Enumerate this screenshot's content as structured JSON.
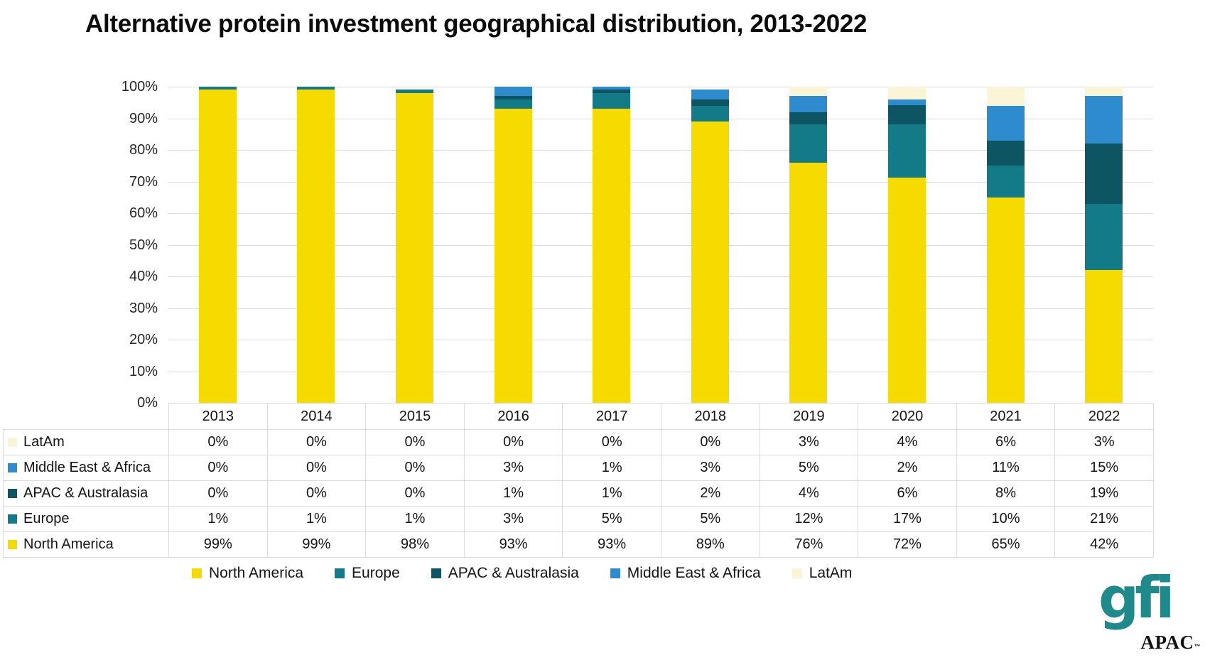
{
  "title": "Alternative protein investment geographical distribution, 2013-2022",
  "chart_data": {
    "type": "bar",
    "subtype": "stacked-100-percent",
    "categories": [
      "2013",
      "2014",
      "2015",
      "2016",
      "2017",
      "2018",
      "2019",
      "2020",
      "2021",
      "2022"
    ],
    "series": [
      {
        "name": "North America",
        "color": "#F6DB00",
        "values": [
          99,
          99,
          98,
          93,
          93,
          89,
          76,
          72,
          65,
          42
        ]
      },
      {
        "name": "Europe",
        "color": "#137A87",
        "values": [
          1,
          1,
          1,
          3,
          5,
          5,
          12,
          17,
          10,
          21
        ]
      },
      {
        "name": "APAC & Australasia",
        "color": "#0D5563",
        "values": [
          0,
          0,
          0,
          1,
          1,
          2,
          4,
          6,
          8,
          19
        ]
      },
      {
        "name": "Middle East & Africa",
        "color": "#2E8BCD",
        "values": [
          0,
          0,
          0,
          3,
          1,
          3,
          5,
          2,
          11,
          15
        ]
      },
      {
        "name": "LatAm",
        "color": "#FBF5D8",
        "values": [
          0,
          0,
          0,
          0,
          0,
          0,
          3,
          4,
          6,
          3
        ]
      }
    ],
    "y_ticks": [
      "0%",
      "10%",
      "20%",
      "30%",
      "40%",
      "50%",
      "60%",
      "70%",
      "80%",
      "90%",
      "100%"
    ],
    "ylim": [
      0,
      100
    ],
    "value_suffix": "%",
    "grid": true,
    "legend_position": "bottom",
    "data_table_shown": true
  },
  "colors": {
    "gridline": "#DADADA",
    "table_border": "#D9D9D9",
    "title_text": "#0C0C0C",
    "logo_teal": "#1F8A8C"
  },
  "logo": {
    "brand": "gfi",
    "region": "APAC",
    "tm": "™"
  }
}
